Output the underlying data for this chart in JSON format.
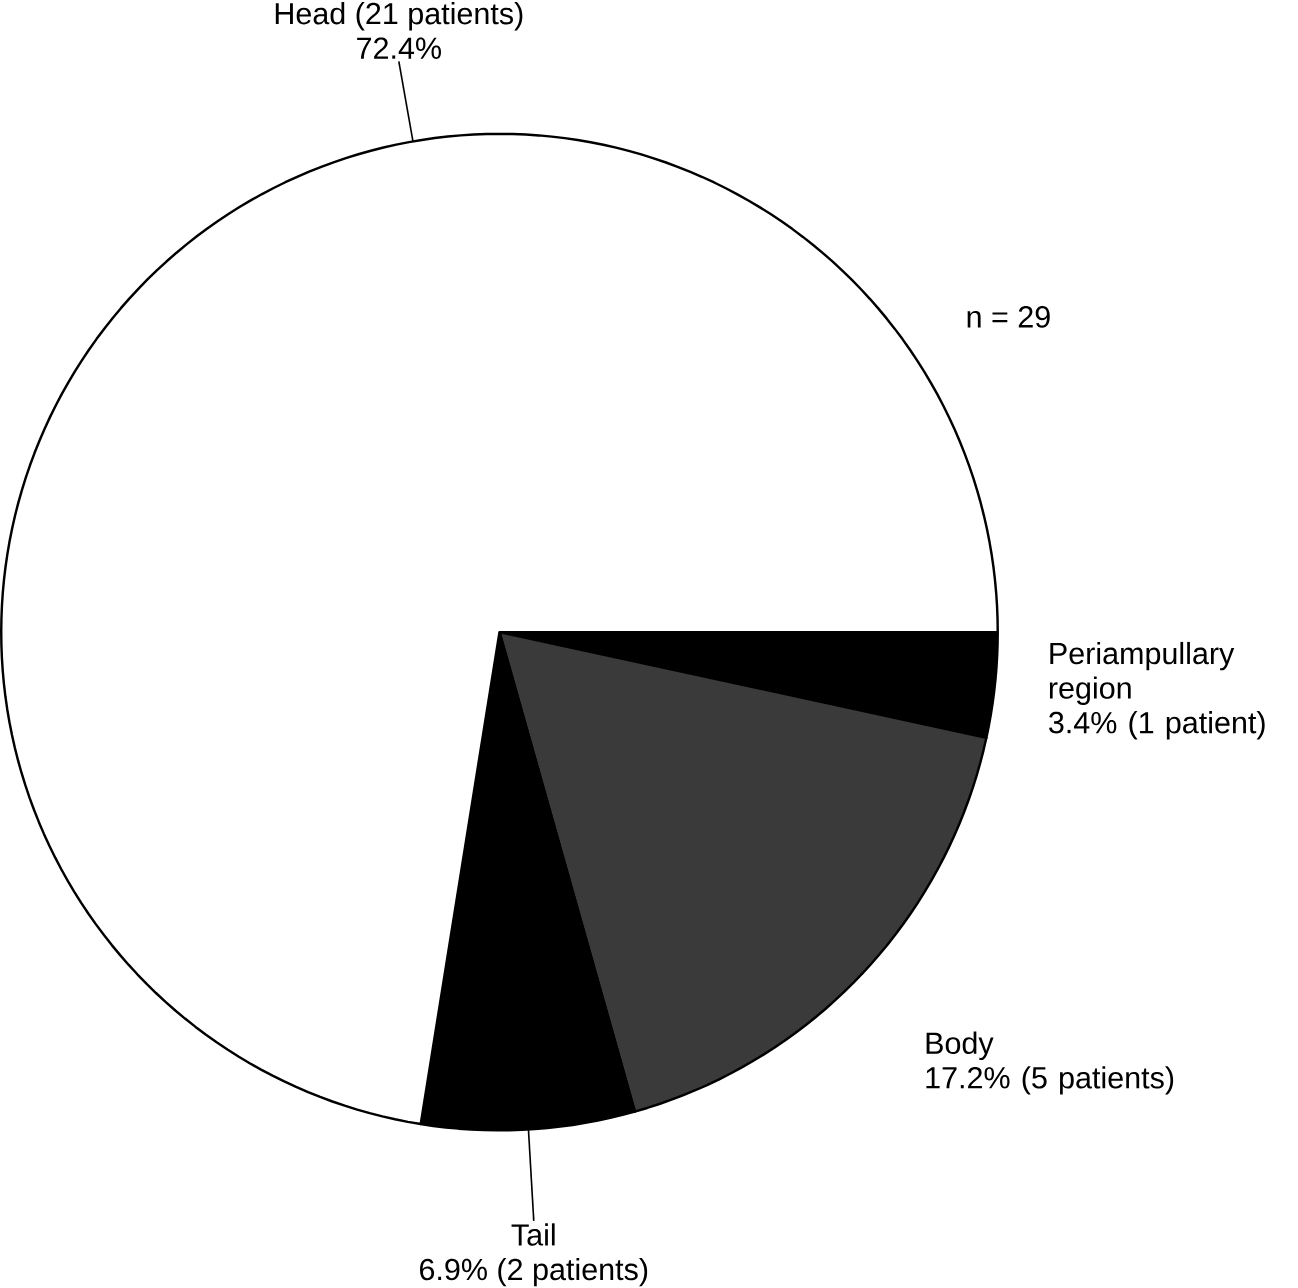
{
  "chart_data": {
    "type": "pie",
    "categories": [
      "Periampullary region",
      "Body",
      "Tail",
      "Head (21 patients)"
    ],
    "values": [
      3.4,
      17.2,
      6.9,
      72.4
    ],
    "colors": [
      "#000000",
      "#3a3a3a",
      "#000000",
      "#ffffff"
    ],
    "value_labels": [
      "3.4% (1 patient)",
      "17.2% (5 patients)",
      "6.9% (2 patients)",
      "72.4%"
    ],
    "annotations": [
      "n = 29"
    ]
  }
}
